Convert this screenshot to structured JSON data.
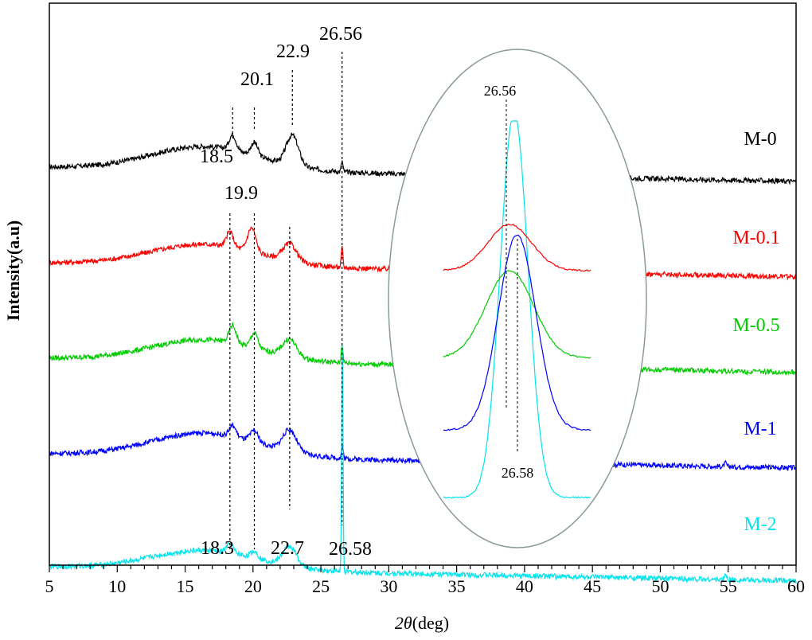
{
  "chart_data": {
    "type": "line",
    "xlabel_italic": "2θ",
    "xlabel_rest": "(deg)",
    "ylabel": "Intensity(a.u)",
    "xlim": [
      5,
      60
    ],
    "xticks": [
      5,
      10,
      15,
      20,
      25,
      30,
      35,
      40,
      45,
      50,
      55,
      60
    ],
    "series": [
      {
        "name": "M-0",
        "color": "#000000",
        "offset": 4,
        "humps": [
          [
            16.5,
            4.0,
            0.55
          ],
          [
            18.5,
            0.25,
            0.35
          ],
          [
            20.1,
            0.25,
            0.3
          ],
          [
            22.9,
            0.45,
            0.7
          ],
          [
            26.56,
            0.06,
            0.25
          ]
        ]
      },
      {
        "name": "M-0.1",
        "color": "#ff0000",
        "offset": 3,
        "humps": [
          [
            16.5,
            4.0,
            0.5
          ],
          [
            18.3,
            0.25,
            0.35
          ],
          [
            19.9,
            0.3,
            0.55
          ],
          [
            22.7,
            0.5,
            0.4
          ],
          [
            26.56,
            0.06,
            0.45
          ]
        ]
      },
      {
        "name": "M-0.5",
        "color": "#00cc00",
        "offset": 2,
        "humps": [
          [
            16.5,
            4.0,
            0.5
          ],
          [
            18.5,
            0.25,
            0.4
          ],
          [
            20.1,
            0.25,
            0.35
          ],
          [
            22.7,
            0.5,
            0.4
          ],
          [
            26.56,
            0.06,
            0.45
          ]
        ]
      },
      {
        "name": "M-1",
        "color": "#0000ff",
        "offset": 1,
        "humps": [
          [
            16.5,
            4.0,
            0.55
          ],
          [
            18.5,
            0.25,
            0.25
          ],
          [
            20.1,
            0.3,
            0.25
          ],
          [
            22.7,
            0.5,
            0.5
          ],
          [
            26.58,
            0.06,
            0.3
          ],
          [
            54.8,
            0.08,
            0.08
          ]
        ]
      },
      {
        "name": "M-2",
        "color": "#00e5ee",
        "offset": 0,
        "humps": [
          [
            16.5,
            4.0,
            0.45
          ],
          [
            18.3,
            0.25,
            0.2
          ],
          [
            20.1,
            0.25,
            0.15
          ],
          [
            22.7,
            0.5,
            0.45
          ],
          [
            26.58,
            0.05,
            5.4
          ],
          [
            54.8,
            0.08,
            0.12
          ]
        ]
      }
    ],
    "annotations": [
      "26.56",
      "22.9",
      "20.1",
      "18.5",
      "19.9",
      "18.3",
      "22.7",
      "26.58"
    ],
    "inset": {
      "label_top": "26.56",
      "label_bottom": "26.58"
    }
  }
}
